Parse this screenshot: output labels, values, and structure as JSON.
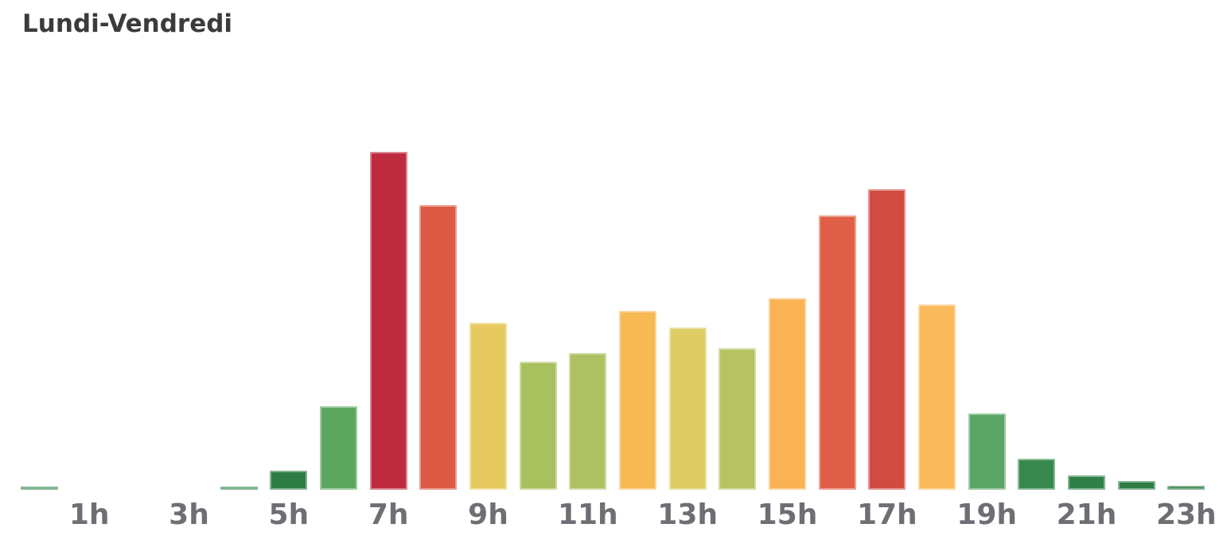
{
  "title": "Lundi-Vendredi",
  "colors": {
    "background": "#ffffff",
    "title_text": "#3b3b3b",
    "axis_label_text": "#6d6f74",
    "scale_low_green": "#2d7c44",
    "scale_mid_yellow": "#ddcb64",
    "scale_high_red": "#bf2b3e"
  },
  "chart_data": {
    "type": "bar",
    "title": "Lundi-Vendredi",
    "xlabel": "",
    "ylabel": "",
    "value_basis": "percent_of_max_bar",
    "ylim": [
      0,
      100
    ],
    "grid": false,
    "legend": "none",
    "axis_lines": "none",
    "categories": [
      "0h",
      "1h",
      "2h",
      "3h",
      "4h",
      "5h",
      "6h",
      "7h",
      "8h",
      "9h",
      "10h",
      "11h",
      "12h",
      "13h",
      "14h",
      "15h",
      "16h",
      "17h",
      "18h",
      "19h",
      "20h",
      "21h",
      "22h",
      "23h"
    ],
    "values": [
      0.9,
      0,
      0,
      0,
      0.9,
      5.6,
      24.7,
      100,
      84.2,
      49.4,
      37.9,
      40.5,
      52.9,
      48.0,
      41.9,
      56.7,
      81.2,
      88.9,
      54.8,
      22.6,
      9.2,
      4.2,
      2.6,
      1.2
    ],
    "bar_colors": [
      "#2e8049",
      null,
      null,
      null,
      "#2e8049",
      "#2e7d45",
      "#5ca75f",
      "#bf2b3e",
      "#dd5b45",
      "#e7ca5f",
      "#a9c05e",
      "#adc162",
      "#f6b953",
      "#ddcb64",
      "#b7c262",
      "#f9b254",
      "#df5f46",
      "#d04b42",
      "#fab95a",
      "#5aa563",
      "#36884d",
      "#2f8048",
      "#2d7c44",
      "#2d7c44"
    ],
    "x_tick_indices": [
      1,
      3,
      5,
      7,
      9,
      11,
      13,
      15,
      17,
      19,
      21,
      23
    ],
    "x_tick_labels": [
      "1h",
      "3h",
      "5h",
      "7h",
      "9h",
      "11h",
      "13h",
      "15h",
      "17h",
      "19h",
      "21h",
      "23h"
    ]
  }
}
